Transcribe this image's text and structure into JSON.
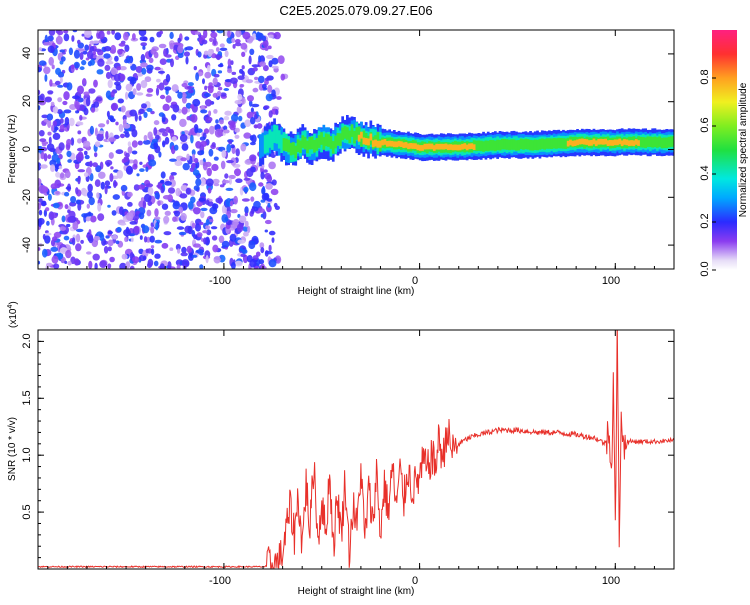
{
  "chart_data": [
    {
      "type": "heatmap",
      "title": "C2E5.2025.079.09.27.E06",
      "xlabel": "Height of straight line (km)",
      "ylabel": "Frequency (Hz)",
      "xlim": [
        -195,
        130
      ],
      "ylim": [
        -50,
        50
      ],
      "x_ticks": [
        -100,
        0,
        100
      ],
      "x_tick_labels": [
        "-100",
        "0",
        "100"
      ],
      "y_ticks": [
        -40,
        -20,
        0,
        20,
        40
      ],
      "y_tick_labels": [
        "-40",
        "-20",
        "0",
        "20",
        "40"
      ],
      "colorbar": {
        "label": "Normalized spectral amplitude",
        "range": [
          0,
          1
        ],
        "ticks": [
          0.0,
          0.2,
          0.4,
          0.6,
          0.8
        ],
        "tick_labels": [
          "0.0",
          "0.2",
          "0.4",
          "0.6",
          "0.8"
        ],
        "colormap": "rainbow (white-violet-blue-cyan-green-yellow-red-magenta)"
      },
      "noise_region": {
        "x": [
          -195,
          -78
        ],
        "y": [
          -50,
          50
        ],
        "amplitude": [
          0.05,
          0.25
        ]
      },
      "signal_band": [
        {
          "x": -82,
          "f": 0,
          "amplitude": 0.35
        },
        {
          "x": -75,
          "f": 6,
          "amplitude": 0.45
        },
        {
          "x": -70,
          "f": 2,
          "amplitude": 0.5
        },
        {
          "x": -65,
          "f": -1,
          "amplitude": 0.5
        },
        {
          "x": -60,
          "f": 3,
          "amplitude": 0.55
        },
        {
          "x": -55,
          "f": 1,
          "amplitude": 0.55
        },
        {
          "x": -50,
          "f": 4,
          "amplitude": 0.6
        },
        {
          "x": -45,
          "f": 2,
          "amplitude": 0.6
        },
        {
          "x": -40,
          "f": 6,
          "amplitude": 0.65
        },
        {
          "x": -35,
          "f": 7,
          "amplitude": 0.7
        },
        {
          "x": -30,
          "f": 5,
          "amplitude": 0.8
        },
        {
          "x": -25,
          "f": 4,
          "amplitude": 0.85
        },
        {
          "x": -20,
          "f": 3,
          "amplitude": 0.9
        },
        {
          "x": -10,
          "f": 2,
          "amplitude": 0.9
        },
        {
          "x": 0,
          "f": 1,
          "amplitude": 0.9
        },
        {
          "x": 10,
          "f": 1,
          "amplitude": 0.9
        },
        {
          "x": 20,
          "f": 1,
          "amplitude": 0.85
        },
        {
          "x": 40,
          "f": 2,
          "amplitude": 0.6
        },
        {
          "x": 60,
          "f": 2,
          "amplitude": 0.6
        },
        {
          "x": 80,
          "f": 3,
          "amplitude": 0.8
        },
        {
          "x": 100,
          "f": 3,
          "amplitude": 0.9
        },
        {
          "x": 120,
          "f": 3,
          "amplitude": 0.65
        },
        {
          "x": 130,
          "f": 3,
          "amplitude": 0.6
        }
      ]
    },
    {
      "type": "line",
      "xlabel": "Height of straight line (km)",
      "ylabel": "SNR (10 * v/v)",
      "y_multiplier_label": "(x10",
      "y_multiplier_exponent": "4",
      "xlim": [
        -195,
        130
      ],
      "ylim": [
        0,
        2.1
      ],
      "x_ticks": [
        -100,
        0,
        100
      ],
      "x_tick_labels": [
        "-100",
        "0",
        "100"
      ],
      "y_ticks": [
        0.5,
        1.0,
        1.5,
        2.0
      ],
      "y_tick_labels": [
        "0.5",
        "1.0",
        "1.5",
        "2.0"
      ],
      "color": "#e8302a",
      "series": [
        {
          "x": [
            -195,
            -150,
            -100,
            -80,
            -75,
            -72,
            -70,
            -68,
            -66,
            -64,
            -62,
            -60,
            -58,
            -56,
            -54,
            -52,
            -50,
            -48,
            -46,
            -44,
            -42,
            -40,
            -38,
            -36,
            -34,
            -32,
            -30,
            -28,
            -26,
            -24,
            -22,
            -20,
            -18,
            -16,
            -14,
            -12,
            -10,
            -8,
            -6,
            -4,
            -2,
            0,
            2,
            4,
            6,
            8,
            10,
            12,
            14,
            16,
            18,
            20,
            25,
            30,
            35,
            40,
            50,
            60,
            70,
            80,
            90,
            95,
            97,
            98,
            99,
            100,
            101,
            102,
            103,
            104,
            106,
            110,
            120,
            130
          ],
          "y": [
            0.02,
            0.02,
            0.02,
            0.02,
            0.03,
            0.05,
            0.15,
            0.35,
            0.55,
            0.3,
            0.65,
            0.2,
            0.75,
            0.35,
            0.95,
            0.25,
            0.6,
            0.3,
            0.85,
            0.2,
            0.65,
            0.3,
            0.8,
            0.15,
            0.55,
            0.35,
            0.9,
            0.25,
            0.7,
            0.4,
            0.85,
            0.3,
            0.75,
            0.5,
            0.9,
            0.55,
            0.85,
            0.6,
            0.9,
            0.7,
            0.75,
            0.8,
            0.95,
            0.85,
            1.0,
            0.9,
            1.15,
            0.95,
            1.25,
            1.05,
            1.05,
            1.1,
            1.15,
            1.18,
            1.2,
            1.22,
            1.22,
            1.2,
            1.2,
            1.18,
            1.15,
            1.1,
            1.3,
            0.8,
            1.7,
            0.3,
            2.1,
            0.2,
            1.5,
            1.05,
            1.12,
            1.12,
            1.12,
            1.13
          ]
        }
      ]
    }
  ]
}
